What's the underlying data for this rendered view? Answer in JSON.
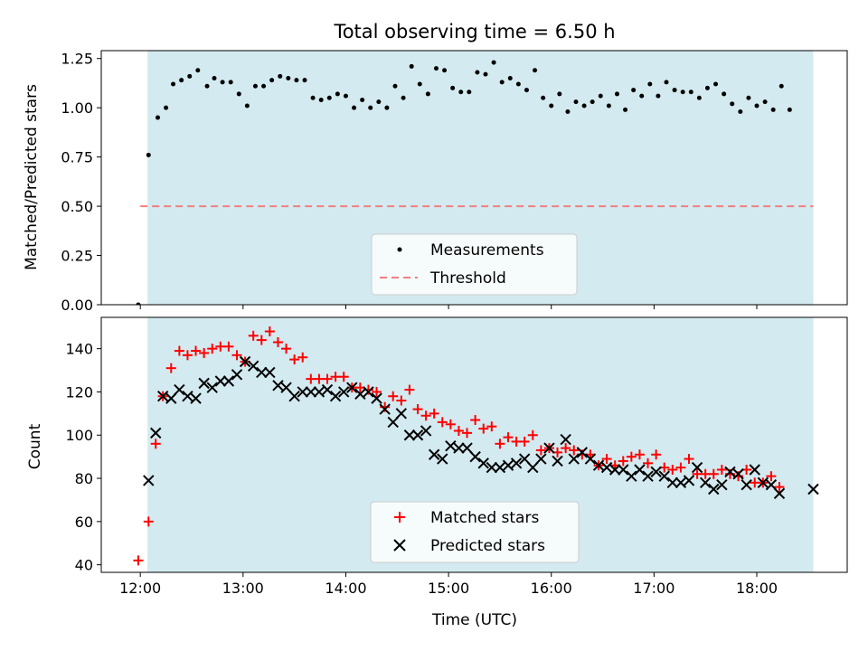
{
  "chart_data": [
    {
      "type": "scatter",
      "title": "Total observing time = 6.50 h",
      "ylabel": "Matched/Predicted stars",
      "xlabel": "",
      "xlim": [
        11.62,
        18.88
      ],
      "ylim": [
        0.0,
        1.29
      ],
      "x_ticks": [
        12,
        13,
        14,
        15,
        16,
        17,
        18
      ],
      "x_tick_labels": [],
      "y_ticks": [
        0.0,
        0.25,
        0.5,
        0.75,
        1.0,
        1.25
      ],
      "y_tick_labels": [
        "0.00",
        "0.25",
        "0.50",
        "0.75",
        "1.00",
        "1.25"
      ],
      "shaded_span": [
        12.07,
        18.55
      ],
      "shade_color": "#d3eaf0",
      "threshold": {
        "value": 0.5,
        "x_range": [
          12.0,
          18.55
        ],
        "color": "#f08080"
      },
      "legend": {
        "position": "lower center",
        "entries": [
          "Measurements",
          "Threshold"
        ]
      },
      "series": [
        {
          "name": "Measurements",
          "color": "#000000",
          "marker": "dot",
          "points": [
            [
              11.98,
              0.0
            ],
            [
              12.08,
              0.76
            ],
            [
              12.17,
              0.95
            ],
            [
              12.25,
              1.0
            ],
            [
              12.32,
              1.12
            ],
            [
              12.4,
              1.14
            ],
            [
              12.48,
              1.16
            ],
            [
              12.56,
              1.19
            ],
            [
              12.65,
              1.11
            ],
            [
              12.72,
              1.15
            ],
            [
              12.8,
              1.13
            ],
            [
              12.88,
              1.13
            ],
            [
              12.96,
              1.07
            ],
            [
              13.04,
              1.01
            ],
            [
              13.12,
              1.11
            ],
            [
              13.2,
              1.11
            ],
            [
              13.28,
              1.14
            ],
            [
              13.36,
              1.16
            ],
            [
              13.44,
              1.15
            ],
            [
              13.52,
              1.14
            ],
            [
              13.6,
              1.14
            ],
            [
              13.68,
              1.05
            ],
            [
              13.76,
              1.04
            ],
            [
              13.84,
              1.05
            ],
            [
              13.92,
              1.07
            ],
            [
              14.0,
              1.06
            ],
            [
              14.08,
              1.0
            ],
            [
              14.16,
              1.04
            ],
            [
              14.24,
              1.0
            ],
            [
              14.32,
              1.03
            ],
            [
              14.4,
              1.0
            ],
            [
              14.48,
              1.11
            ],
            [
              14.56,
              1.05
            ],
            [
              14.64,
              1.21
            ],
            [
              14.72,
              1.12
            ],
            [
              14.8,
              1.07
            ],
            [
              14.88,
              1.2
            ],
            [
              14.96,
              1.19
            ],
            [
              15.04,
              1.1
            ],
            [
              15.12,
              1.08
            ],
            [
              15.2,
              1.08
            ],
            [
              15.28,
              1.18
            ],
            [
              15.36,
              1.17
            ],
            [
              15.44,
              1.23
            ],
            [
              15.52,
              1.13
            ],
            [
              15.6,
              1.15
            ],
            [
              15.68,
              1.12
            ],
            [
              15.76,
              1.09
            ],
            [
              15.84,
              1.19
            ],
            [
              15.92,
              1.05
            ],
            [
              16.0,
              1.01
            ],
            [
              16.08,
              1.07
            ],
            [
              16.16,
              0.98
            ],
            [
              16.24,
              1.03
            ],
            [
              16.32,
              1.01
            ],
            [
              16.4,
              1.03
            ],
            [
              16.48,
              1.06
            ],
            [
              16.56,
              1.01
            ],
            [
              16.64,
              1.07
            ],
            [
              16.72,
              0.99
            ],
            [
              16.8,
              1.09
            ],
            [
              16.88,
              1.06
            ],
            [
              16.96,
              1.12
            ],
            [
              17.04,
              1.06
            ],
            [
              17.12,
              1.13
            ],
            [
              17.2,
              1.09
            ],
            [
              17.28,
              1.08
            ],
            [
              17.36,
              1.08
            ],
            [
              17.44,
              1.05
            ],
            [
              17.52,
              1.1
            ],
            [
              17.6,
              1.12
            ],
            [
              17.68,
              1.07
            ],
            [
              17.76,
              1.02
            ],
            [
              17.84,
              0.98
            ],
            [
              17.92,
              1.05
            ],
            [
              18.0,
              1.01
            ],
            [
              18.08,
              1.03
            ],
            [
              18.16,
              0.99
            ],
            [
              18.24,
              1.11
            ],
            [
              18.32,
              0.99
            ]
          ]
        }
      ]
    },
    {
      "type": "scatter",
      "title": "",
      "ylabel": "Count",
      "xlabel": "Time (UTC)",
      "xlim": [
        11.62,
        18.88
      ],
      "ylim": [
        36.5,
        154.5
      ],
      "x_ticks": [
        12,
        13,
        14,
        15,
        16,
        17,
        18
      ],
      "x_tick_labels": [
        "12:00",
        "13:00",
        "14:00",
        "15:00",
        "16:00",
        "17:00",
        "18:00"
      ],
      "y_ticks": [
        40,
        60,
        80,
        100,
        120,
        140
      ],
      "y_tick_labels": [
        "40",
        "60",
        "80",
        "100",
        "120",
        "140"
      ],
      "shaded_span": [
        12.07,
        18.55
      ],
      "shade_color": "#d3eaf0",
      "legend": {
        "position": "lower center",
        "entries": [
          "Matched stars",
          "Predicted stars"
        ]
      },
      "series": [
        {
          "name": "Matched stars",
          "color": "#ff0000",
          "marker": "plus",
          "points": [
            [
              11.98,
              42
            ],
            [
              12.08,
              60
            ],
            [
              12.15,
              96
            ],
            [
              12.22,
              118
            ],
            [
              12.3,
              131
            ],
            [
              12.38,
              139
            ],
            [
              12.46,
              137
            ],
            [
              12.54,
              139
            ],
            [
              12.62,
              138
            ],
            [
              12.7,
              140
            ],
            [
              12.78,
              141
            ],
            [
              12.86,
              141
            ],
            [
              12.94,
              137
            ],
            [
              13.02,
              134
            ],
            [
              13.1,
              146
            ],
            [
              13.18,
              144
            ],
            [
              13.26,
              148
            ],
            [
              13.34,
              143
            ],
            [
              13.42,
              140
            ],
            [
              13.5,
              135
            ],
            [
              13.58,
              136
            ],
            [
              13.66,
              126
            ],
            [
              13.74,
              126
            ],
            [
              13.82,
              126
            ],
            [
              13.9,
              127
            ],
            [
              13.98,
              127
            ],
            [
              14.06,
              122
            ],
            [
              14.14,
              122
            ],
            [
              14.22,
              121
            ],
            [
              14.3,
              120
            ],
            [
              14.38,
              113
            ],
            [
              14.46,
              118
            ],
            [
              14.54,
              116
            ],
            [
              14.62,
              121
            ],
            [
              14.7,
              112
            ],
            [
              14.78,
              109
            ],
            [
              14.86,
              110
            ],
            [
              14.94,
              106
            ],
            [
              15.02,
              105
            ],
            [
              15.1,
              102
            ],
            [
              15.18,
              101
            ],
            [
              15.26,
              107
            ],
            [
              15.34,
              103
            ],
            [
              15.42,
              104
            ],
            [
              15.5,
              96
            ],
            [
              15.58,
              99
            ],
            [
              15.66,
              97
            ],
            [
              15.74,
              97
            ],
            [
              15.82,
              100
            ],
            [
              15.9,
              93
            ],
            [
              15.98,
              94
            ],
            [
              16.06,
              92
            ],
            [
              16.14,
              94
            ],
            [
              16.22,
              93
            ],
            [
              16.3,
              91
            ],
            [
              16.38,
              91
            ],
            [
              16.46,
              86
            ],
            [
              16.54,
              89
            ],
            [
              16.62,
              86
            ],
            [
              16.7,
              88
            ],
            [
              16.78,
              90
            ],
            [
              16.86,
              91
            ],
            [
              16.94,
              87
            ],
            [
              17.02,
              91
            ],
            [
              17.1,
              85
            ],
            [
              17.18,
              84
            ],
            [
              17.26,
              85
            ],
            [
              17.34,
              89
            ],
            [
              17.42,
              82
            ],
            [
              17.5,
              82
            ],
            [
              17.58,
              82
            ],
            [
              17.66,
              84
            ],
            [
              17.74,
              82
            ],
            [
              17.82,
              81
            ],
            [
              17.9,
              84
            ],
            [
              17.98,
              78
            ],
            [
              18.06,
              78
            ],
            [
              18.14,
              81
            ],
            [
              18.22,
              76
            ]
          ]
        },
        {
          "name": "Predicted stars",
          "color": "#000000",
          "marker": "x",
          "points": [
            [
              12.08,
              79
            ],
            [
              12.15,
              101
            ],
            [
              12.22,
              118
            ],
            [
              12.3,
              117
            ],
            [
              12.38,
              121
            ],
            [
              12.46,
              118
            ],
            [
              12.54,
              117
            ],
            [
              12.62,
              124
            ],
            [
              12.7,
              122
            ],
            [
              12.78,
              125
            ],
            [
              12.86,
              125
            ],
            [
              12.94,
              128
            ],
            [
              13.02,
              134
            ],
            [
              13.1,
              132
            ],
            [
              13.18,
              129
            ],
            [
              13.26,
              129
            ],
            [
              13.34,
              123
            ],
            [
              13.42,
              122
            ],
            [
              13.5,
              118
            ],
            [
              13.58,
              120
            ],
            [
              13.66,
              120
            ],
            [
              13.74,
              120
            ],
            [
              13.82,
              121
            ],
            [
              13.9,
              118
            ],
            [
              13.98,
              120
            ],
            [
              14.06,
              122
            ],
            [
              14.14,
              119
            ],
            [
              14.22,
              120
            ],
            [
              14.3,
              117
            ],
            [
              14.38,
              112
            ],
            [
              14.46,
              106
            ],
            [
              14.54,
              110
            ],
            [
              14.62,
              100
            ],
            [
              14.7,
              100
            ],
            [
              14.78,
              102
            ],
            [
              14.86,
              91
            ],
            [
              14.94,
              89
            ],
            [
              15.02,
              95
            ],
            [
              15.1,
              94
            ],
            [
              15.18,
              94
            ],
            [
              15.26,
              90
            ],
            [
              15.34,
              87
            ],
            [
              15.42,
              85
            ],
            [
              15.5,
              85
            ],
            [
              15.58,
              86
            ],
            [
              15.66,
              87
            ],
            [
              15.74,
              89
            ],
            [
              15.82,
              85
            ],
            [
              15.9,
              89
            ],
            [
              15.98,
              94
            ],
            [
              16.06,
              88
            ],
            [
              16.14,
              98
            ],
            [
              16.22,
              89
            ],
            [
              16.3,
              92
            ],
            [
              16.38,
              89
            ],
            [
              16.46,
              86
            ],
            [
              16.54,
              85
            ],
            [
              16.62,
              84
            ],
            [
              16.7,
              84
            ],
            [
              16.78,
              81
            ],
            [
              16.86,
              84
            ],
            [
              16.94,
              81
            ],
            [
              17.02,
              83
            ],
            [
              17.1,
              81
            ],
            [
              17.18,
              78
            ],
            [
              17.26,
              78
            ],
            [
              17.34,
              79
            ],
            [
              17.42,
              85
            ],
            [
              17.5,
              78
            ],
            [
              17.58,
              75
            ],
            [
              17.66,
              77
            ],
            [
              17.74,
              83
            ],
            [
              17.82,
              82
            ],
            [
              17.9,
              77
            ],
            [
              17.98,
              84
            ],
            [
              18.06,
              78
            ],
            [
              18.14,
              77
            ],
            [
              18.22,
              73
            ],
            [
              18.55,
              75
            ]
          ]
        }
      ]
    }
  ]
}
